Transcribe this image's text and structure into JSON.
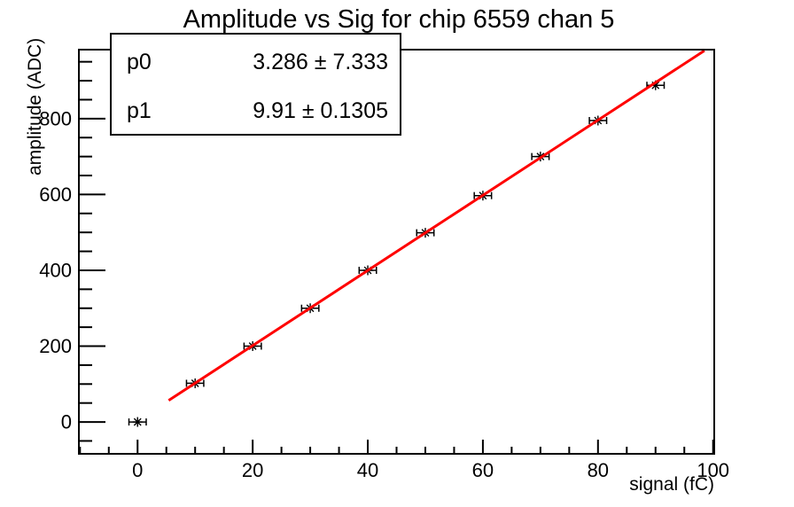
{
  "chart_data": {
    "type": "scatter",
    "title": "Amplitude vs Sig for chip 6559 chan 5",
    "xlabel": "signal (fC)",
    "ylabel": "amplitude (ADC)",
    "xlim": [
      -10.2,
      100.2
    ],
    "ylim": [
      -84,
      982
    ],
    "x_ticks": [
      0,
      20,
      40,
      60,
      80,
      100
    ],
    "x_minor_step": 5,
    "y_ticks": [
      0,
      200,
      400,
      600,
      800
    ],
    "y_minor_step": 50,
    "grid": false,
    "legend_position": "none",
    "points": {
      "x": [
        0,
        10,
        20,
        30,
        40,
        50,
        60,
        70,
        80,
        90
      ],
      "y": [
        0,
        102,
        200,
        300,
        400,
        499,
        597,
        700,
        795,
        888
      ],
      "x_err": 1.5,
      "marker": "star",
      "color": "#000000"
    },
    "fit": {
      "model": "p0 + p1*x",
      "p0": 3.286,
      "p1": 9.91,
      "x_min": 5.4,
      "x_max": 98.5,
      "color": "#ff0000"
    },
    "stats_box": {
      "rows": [
        {
          "label": "p0",
          "value": "3.286 ± 7.333"
        },
        {
          "label": "p1",
          "value": "9.91 ± 0.1305"
        }
      ]
    },
    "colors": {
      "frame": "#000000",
      "background": "#ffffff",
      "fit_line": "#ff0000",
      "marker": "#000000"
    }
  }
}
